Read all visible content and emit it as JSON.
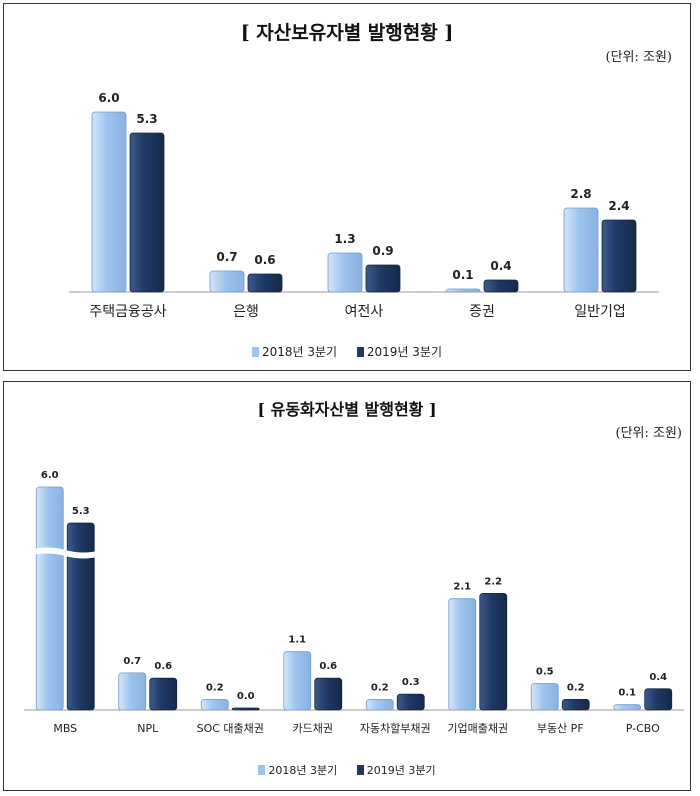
{
  "colors": {
    "s2018": "#9dc3ee",
    "s2018_light": "#d3e6fb",
    "s2019": "#1f3864",
    "s2019_light": "#3a5a8c"
  },
  "chart_data": [
    {
      "type": "bar",
      "title": "[ 자산보유자별 발행현황 ]",
      "unit_label": "(단위: 조원)",
      "categories": [
        "주택금융공사",
        "은행",
        "여전사",
        "증권",
        "일반기업"
      ],
      "series": [
        {
          "name": "2018년 3분기",
          "values": [
            6.0,
            0.7,
            1.3,
            0.1,
            2.8
          ]
        },
        {
          "name": "2019년 3분기",
          "values": [
            5.3,
            0.6,
            0.9,
            0.4,
            2.4
          ]
        }
      ],
      "ylim": [
        0,
        6.0
      ],
      "legend": "bottom"
    },
    {
      "type": "bar",
      "title": "[ 유동화자산별 발행현황 ]",
      "unit_label": "(단위: 조원)",
      "categories": [
        "MBS",
        "NPL",
        "SOC 대출채권",
        "카드채권",
        "자동차할부채권",
        "기업매출채권",
        "부동산 PF",
        "P-CBO"
      ],
      "series": [
        {
          "name": "2018년 3분기",
          "values": [
            6.0,
            0.7,
            0.2,
            1.1,
            0.2,
            2.1,
            0.5,
            0.1
          ]
        },
        {
          "name": "2019년 3분기",
          "values": [
            5.3,
            0.6,
            0.0,
            0.6,
            0.3,
            2.2,
            0.2,
            0.4
          ]
        }
      ],
      "ylim": [
        0,
        2.5
      ],
      "axis_break": true,
      "legend": "bottom"
    }
  ]
}
